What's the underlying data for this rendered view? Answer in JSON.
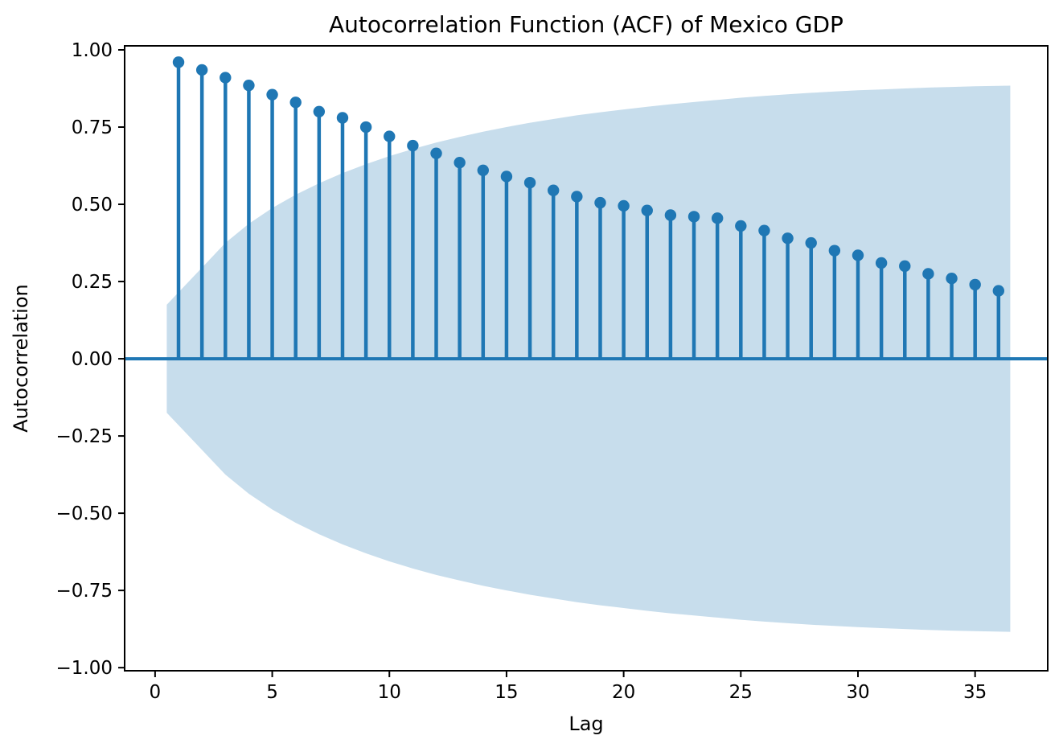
{
  "chart_data": {
    "type": "stem",
    "title": "Autocorrelation Function (ACF) of Mexico GDP",
    "xlabel": "Lag",
    "ylabel": "Autocorrelation",
    "lags": [
      1,
      2,
      3,
      4,
      5,
      6,
      7,
      8,
      9,
      10,
      11,
      12,
      13,
      14,
      15,
      16,
      17,
      18,
      19,
      20,
      21,
      22,
      23,
      24,
      25,
      26,
      27,
      28,
      29,
      30,
      31,
      32,
      33,
      34,
      35,
      36
    ],
    "acf_values": [
      0.96,
      0.935,
      0.91,
      0.885,
      0.855,
      0.83,
      0.8,
      0.78,
      0.75,
      0.72,
      0.69,
      0.665,
      0.635,
      0.61,
      0.59,
      0.57,
      0.545,
      0.525,
      0.505,
      0.495,
      0.48,
      0.465,
      0.46,
      0.455,
      0.43,
      0.415,
      0.39,
      0.375,
      0.35,
      0.335,
      0.31,
      0.3,
      0.275,
      0.26,
      0.24,
      0.22
    ],
    "confidence_interval_upper": [
      0.175,
      0.295,
      0.375,
      0.437,
      0.488,
      0.531,
      0.568,
      0.601,
      0.63,
      0.656,
      0.679,
      0.7,
      0.718,
      0.735,
      0.75,
      0.764,
      0.776,
      0.788,
      0.798,
      0.807,
      0.816,
      0.824,
      0.831,
      0.838,
      0.845,
      0.851,
      0.856,
      0.861,
      0.865,
      0.869,
      0.872,
      0.875,
      0.878,
      0.88,
      0.882,
      0.884
    ],
    "confidence_interval_symmetric": true,
    "x_ticks": [
      0,
      5,
      10,
      15,
      20,
      25,
      30,
      35
    ],
    "x_tick_labels": [
      "0",
      "5",
      "10",
      "15",
      "20",
      "25",
      "30",
      "35"
    ],
    "y_ticks": [
      1.0,
      0.75,
      0.5,
      0.25,
      0.0,
      -0.25,
      -0.5,
      -0.75,
      -1.0
    ],
    "y_tick_labels": [
      "1.00",
      "0.75",
      "0.50",
      "0.25",
      "0.00",
      "−0.25",
      "−0.50",
      "−0.75",
      "−1.00"
    ],
    "xlim": [
      -1.3,
      38.1
    ],
    "ylim": [
      -1.01,
      1.013
    ],
    "grid": false,
    "legend": null,
    "colors": {
      "stem": "#1f77b4",
      "marker": "#1f77b4",
      "zero_line": "#1f77b4",
      "confidence_band": "#c7ddec",
      "spine": "#000000",
      "text": "#000000"
    }
  }
}
